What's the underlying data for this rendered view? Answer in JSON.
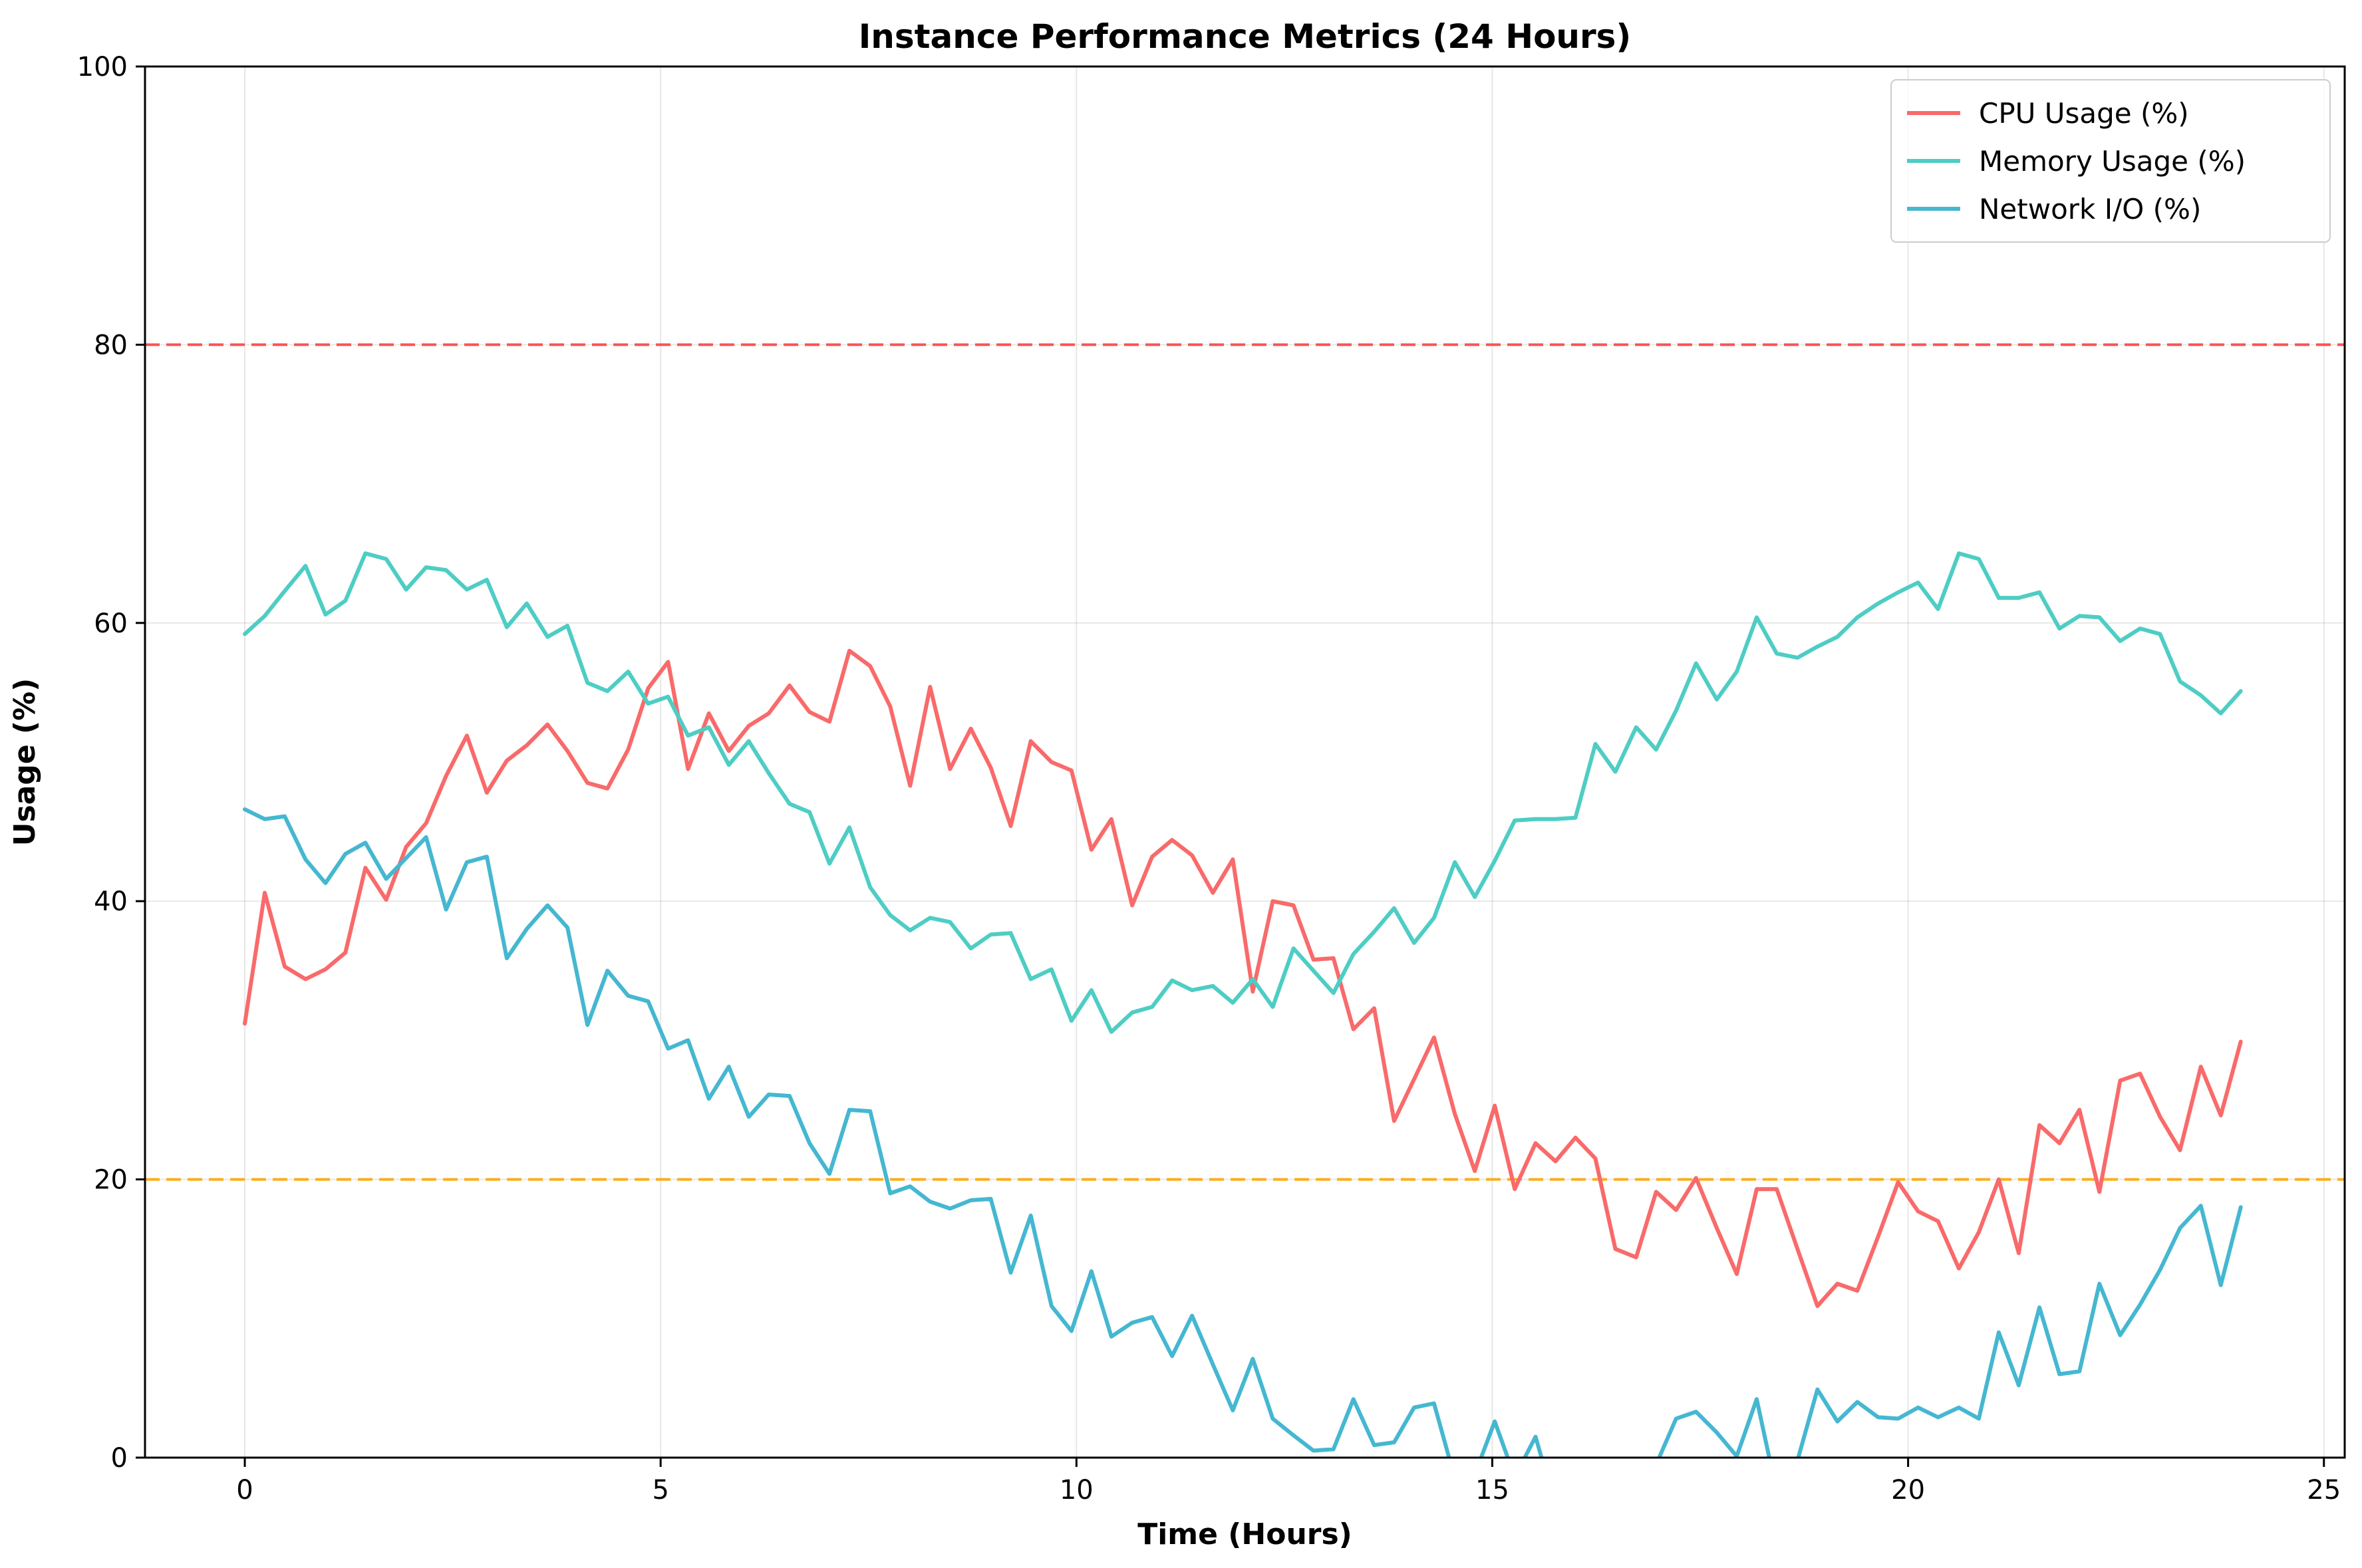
{
  "chart_data": {
    "type": "line",
    "title": "Instance Performance Metrics (24 Hours)",
    "xlabel": "Time (Hours)",
    "ylabel": "Usage (%)",
    "xlim": [
      -1.2,
      25.25
    ],
    "ylim": [
      0,
      100
    ],
    "xticks": [
      0,
      5,
      10,
      15,
      20,
      25
    ],
    "yticks": [
      0,
      20,
      40,
      60,
      80,
      100
    ],
    "grid": true,
    "legend_position": "top-right",
    "thresholds": [
      {
        "y": 80,
        "color": "#ff4040",
        "style": "dashed"
      },
      {
        "y": 20,
        "color": "#ffa500",
        "style": "dashed"
      }
    ],
    "x": [
      0,
      0.24,
      0.48,
      0.73,
      0.97,
      1.21,
      1.45,
      1.7,
      1.94,
      2.18,
      2.42,
      2.67,
      2.91,
      3.15,
      3.39,
      3.64,
      3.88,
      4.12,
      4.36,
      4.61,
      4.85,
      5.09,
      5.33,
      5.58,
      5.82,
      6.06,
      6.3,
      6.55,
      6.79,
      7.03,
      7.27,
      7.52,
      7.76,
      8.0,
      8.24,
      8.48,
      8.73,
      8.97,
      9.21,
      9.45,
      9.7,
      9.94,
      10.18,
      10.42,
      10.67,
      10.91,
      11.15,
      11.39,
      11.64,
      11.88,
      12.12,
      12.36,
      12.61,
      12.85,
      13.09,
      13.33,
      13.58,
      13.82,
      14.06,
      14.3,
      14.55,
      14.79,
      15.03,
      15.27,
      15.52,
      15.76,
      16.0,
      16.24,
      16.48,
      16.73,
      16.97,
      17.21,
      17.45,
      17.7,
      17.94,
      18.18,
      18.42,
      18.67,
      18.91,
      19.15,
      19.39,
      19.64,
      19.88,
      20.12,
      20.36,
      20.61,
      20.85,
      21.09,
      21.33,
      21.58,
      21.82,
      22.06,
      22.3,
      22.55,
      22.79,
      23.03,
      23.27,
      23.52,
      23.76,
      24.0
    ],
    "series": [
      {
        "name": "CPU Usage (%)",
        "color": "#f96a6a",
        "values": [
          31.2,
          40.6,
          35.3,
          34.4,
          35.1,
          36.3,
          42.4,
          40.1,
          43.9,
          45.6,
          49.0,
          51.9,
          47.8,
          50.1,
          51.2,
          52.7,
          50.8,
          48.5,
          48.1,
          50.9,
          55.3,
          57.2,
          49.5,
          53.5,
          50.8,
          52.6,
          53.5,
          55.5,
          53.6,
          52.9,
          58.0,
          56.9,
          54.0,
          48.3,
          55.4,
          49.5,
          52.4,
          49.6,
          45.4,
          51.5,
          50.0,
          49.4,
          43.7,
          45.9,
          39.7,
          43.2,
          44.4,
          43.3,
          40.6,
          43.0,
          33.5,
          40.0,
          39.7,
          35.8,
          35.9,
          30.8,
          32.3,
          24.2,
          27.2,
          30.2,
          24.7,
          20.6,
          25.3,
          19.3,
          22.6,
          21.3,
          23.0,
          21.5,
          15.0,
          14.4,
          19.1,
          17.8,
          20.1,
          16.5,
          13.2,
          19.3,
          19.3,
          15.0,
          10.9,
          12.5,
          12.0,
          15.9,
          19.8,
          17.7,
          17.0,
          13.6,
          16.2,
          20.0,
          14.7,
          23.9,
          22.6,
          25.0,
          19.1,
          27.1,
          27.6,
          24.5,
          22.1,
          28.1,
          24.6,
          29.9
        ]
      },
      {
        "name": "Memory Usage (%)",
        "color": "#4ecdc4",
        "values": [
          59.2,
          60.5,
          62.3,
          64.1,
          60.6,
          61.6,
          65.0,
          64.6,
          62.4,
          64.0,
          63.8,
          62.4,
          63.1,
          59.7,
          61.4,
          59.0,
          59.8,
          55.7,
          55.1,
          56.5,
          54.2,
          54.7,
          51.9,
          52.5,
          49.8,
          51.5,
          49.2,
          47.0,
          46.4,
          42.7,
          45.3,
          41.0,
          39.0,
          37.9,
          38.8,
          38.5,
          36.6,
          37.6,
          37.7,
          34.4,
          35.1,
          31.4,
          33.6,
          30.6,
          32.0,
          32.4,
          34.3,
          33.6,
          33.9,
          32.7,
          34.4,
          32.4,
          36.6,
          35.0,
          33.4,
          36.2,
          37.8,
          39.5,
          37.0,
          38.8,
          42.8,
          40.3,
          42.9,
          45.8,
          45.9,
          45.9,
          46.0,
          51.3,
          49.3,
          52.5,
          50.9,
          53.7,
          57.1,
          54.5,
          56.5,
          60.4,
          57.8,
          57.5,
          58.3,
          59.0,
          60.4,
          61.4,
          62.2,
          62.9,
          61.0,
          65.0,
          64.6,
          61.8,
          61.8,
          62.2,
          59.6,
          60.5,
          60.4,
          58.7,
          59.6,
          59.2,
          55.8,
          54.8,
          53.5,
          55.1
        ]
      },
      {
        "name": "Network I/O (%)",
        "color": "#45b7d1",
        "values": [
          46.6,
          45.9,
          46.1,
          43.0,
          41.3,
          43.4,
          44.2,
          41.6,
          43.1,
          44.6,
          39.4,
          42.8,
          43.2,
          35.9,
          38.0,
          39.7,
          38.1,
          31.1,
          35.0,
          33.2,
          32.8,
          29.4,
          30.0,
          25.8,
          28.1,
          24.5,
          26.1,
          26.0,
          22.6,
          20.4,
          25.0,
          24.9,
          19.0,
          19.5,
          18.4,
          17.9,
          18.5,
          18.6,
          13.3,
          17.4,
          10.9,
          9.1,
          13.4,
          8.7,
          9.7,
          10.1,
          7.3,
          10.2,
          6.7,
          3.4,
          7.1,
          2.8,
          1.6,
          0.5,
          0.6,
          4.2,
          0.9,
          1.1,
          3.6,
          3.9,
          -1.5,
          -1.2,
          2.6,
          -1.4,
          1.5,
          -3.5,
          -4.0,
          -3.0,
          -2.5,
          -2.0,
          -0.5,
          2.8,
          3.3,
          1.8,
          0.1,
          4.2,
          -2.5,
          -0.2,
          4.9,
          2.6,
          4.0,
          2.9,
          2.8,
          3.6,
          2.9,
          3.6,
          2.8,
          9.0,
          5.2,
          10.8,
          6.0,
          6.2,
          12.5,
          8.8,
          11.0,
          13.5,
          16.5,
          18.1,
          12.4,
          18.0
        ]
      }
    ]
  }
}
